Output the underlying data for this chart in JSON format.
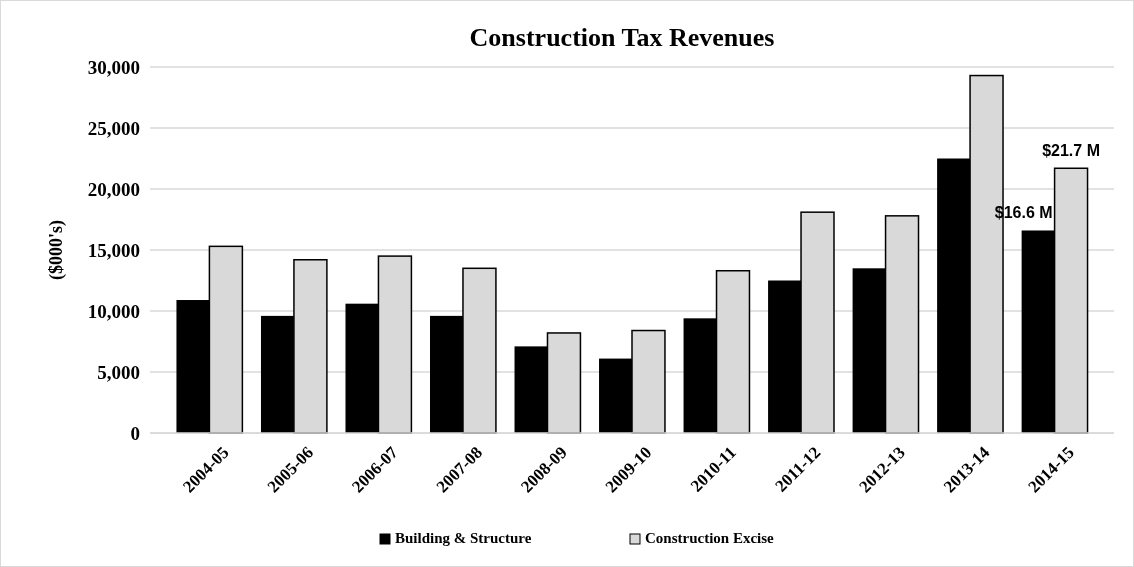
{
  "chart_data": {
    "type": "bar",
    "title": "Construction Tax Revenues",
    "ylabel": "($000's)",
    "categories": [
      "2004-05",
      "2005-06",
      "2006-07",
      "2007-08",
      "2008-09",
      "2009-10",
      "2010-11",
      "2011-12",
      "2012-13",
      "2013-14",
      "2014-15"
    ],
    "series": [
      {
        "name": "Building & Structure",
        "color": "#000000",
        "values": [
          10900,
          9600,
          10600,
          9600,
          7100,
          6100,
          9400,
          12500,
          13500,
          22500,
          16600
        ]
      },
      {
        "name": "Construction Excise",
        "color": "#d9d9d9",
        "values": [
          15300,
          14200,
          14500,
          13500,
          8200,
          8400,
          13300,
          18100,
          17800,
          29300,
          21700
        ]
      }
    ],
    "annotations": [
      {
        "text": "$16.6 M",
        "x": "2014-15",
        "y": 16600
      },
      {
        "text": "$21.7 M",
        "x": "2014-15",
        "y": 21700
      }
    ],
    "ylim": [
      0,
      30000
    ],
    "yticks": [
      {
        "value": 0,
        "label": "0"
      },
      {
        "value": 5000,
        "label": "5,000"
      },
      {
        "value": 10000,
        "label": "10,000"
      },
      {
        "value": 15000,
        "label": "15,000"
      },
      {
        "value": 20000,
        "label": "20,000"
      },
      {
        "value": 25000,
        "label": "25,000"
      },
      {
        "value": 30000,
        "label": "30,000"
      }
    ],
    "grid": "y",
    "legend": "bottom"
  }
}
